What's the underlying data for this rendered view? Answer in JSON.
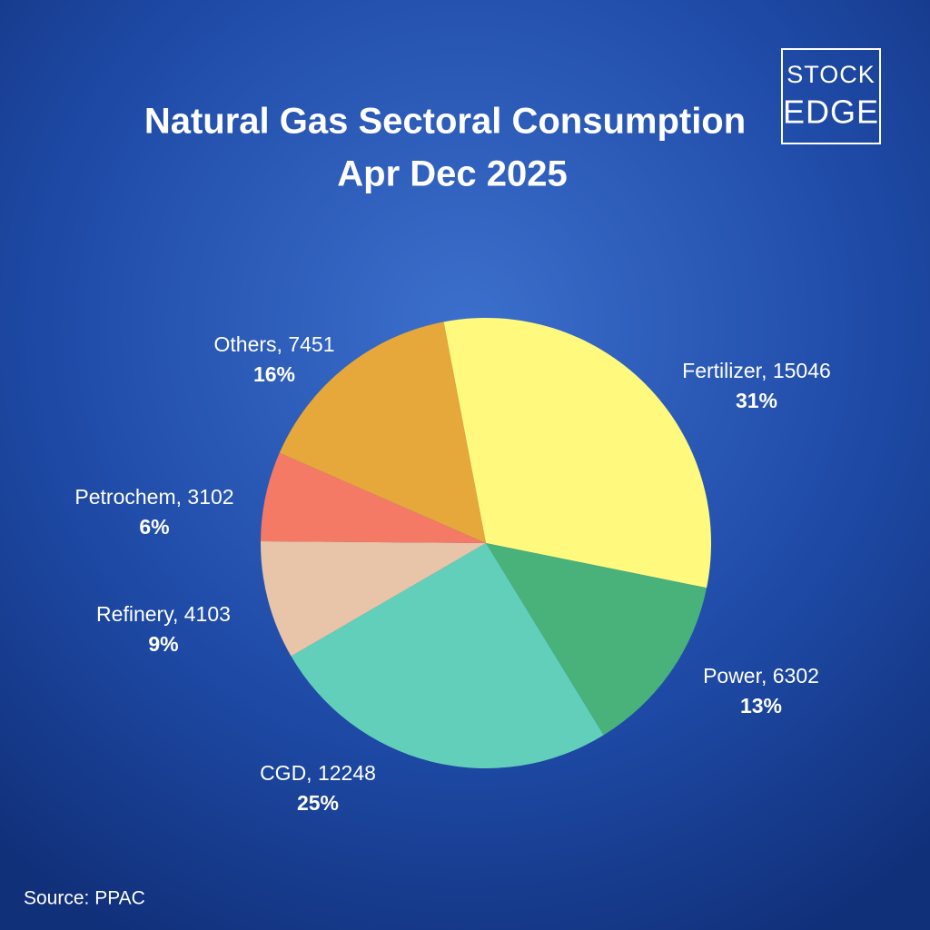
{
  "chart_data": {
    "type": "pie",
    "title": "Natural Gas Sectoral Consumption",
    "subtitle": "Apr Dec 2025",
    "values": [
      15046,
      6302,
      12248,
      4103,
      3102,
      7451
    ],
    "value_labels": [
      "Fertilizer, 15046",
      "Power, 6302",
      "CGD, 12248",
      "Refinery, 4103",
      "Petrochem, 3102",
      "Others, 7451"
    ],
    "percent_labels": [
      "31%",
      "13%",
      "25%",
      "9%",
      "6%",
      "16%"
    ],
    "colors": [
      "#fff97e",
      "#48b27a",
      "#62cfba",
      "#e8c4a8",
      "#f47a66",
      "#e6a83a"
    ],
    "source": "Source: PPAC"
  },
  "logo": {
    "line1": "STOCK",
    "line2": "EDGE"
  }
}
